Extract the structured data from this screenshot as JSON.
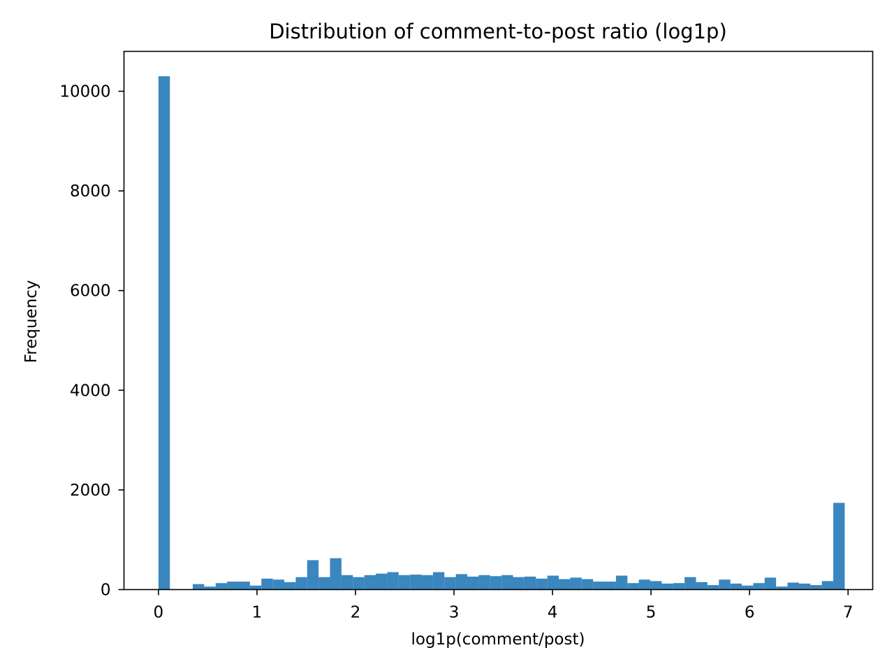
{
  "chart_data": {
    "type": "bar",
    "title": "Distribution of comment-to-post ratio (log1p)",
    "xlabel": "log1p(comment/post)",
    "ylabel": "Frequency",
    "xlim": [
      -0.35,
      7.25
    ],
    "ylim": [
      0,
      10800
    ],
    "xticks": [
      0,
      1,
      2,
      3,
      4,
      5,
      6,
      7
    ],
    "yticks": [
      0,
      2000,
      4000,
      6000,
      8000,
      10000
    ],
    "grid": false,
    "legend": "none",
    "bar_color": "#3a86bf",
    "bin_width": 0.1161,
    "bin_starts": [
      0,
      0.1161,
      0.2322,
      0.3483,
      0.4644,
      0.5805,
      0.6966,
      0.8127,
      0.9288,
      1.0449,
      1.161,
      1.2771,
      1.3932,
      1.5093,
      1.6254,
      1.7415,
      1.8576,
      1.9737,
      2.0898,
      2.2059,
      2.322,
      2.4381,
      2.5542,
      2.6703,
      2.7864,
      2.9025,
      3.0186,
      3.1347,
      3.2508,
      3.3669,
      3.483,
      3.5991,
      3.7152,
      3.8313,
      3.9474,
      4.0635,
      4.1796,
      4.2957,
      4.4118,
      4.5279,
      4.644,
      4.7601,
      4.8762,
      4.9923,
      5.1084,
      5.2245,
      5.3406,
      5.4567,
      5.5728,
      5.6889,
      5.805,
      5.9211,
      6.0372,
      6.1533,
      6.2694,
      6.3855,
      6.5016,
      6.6177,
      6.7338,
      6.8499
    ],
    "values": [
      10300,
      0,
      0,
      110,
      60,
      130,
      160,
      160,
      80,
      220,
      200,
      150,
      250,
      590,
      250,
      630,
      290,
      250,
      290,
      320,
      350,
      290,
      300,
      290,
      350,
      250,
      310,
      260,
      290,
      270,
      290,
      250,
      260,
      220,
      280,
      210,
      240,
      210,
      160,
      160,
      280,
      130,
      200,
      170,
      120,
      130,
      250,
      150,
      90,
      200,
      120,
      80,
      130,
      240,
      60,
      140,
      120,
      90,
      170,
      1740
    ]
  }
}
